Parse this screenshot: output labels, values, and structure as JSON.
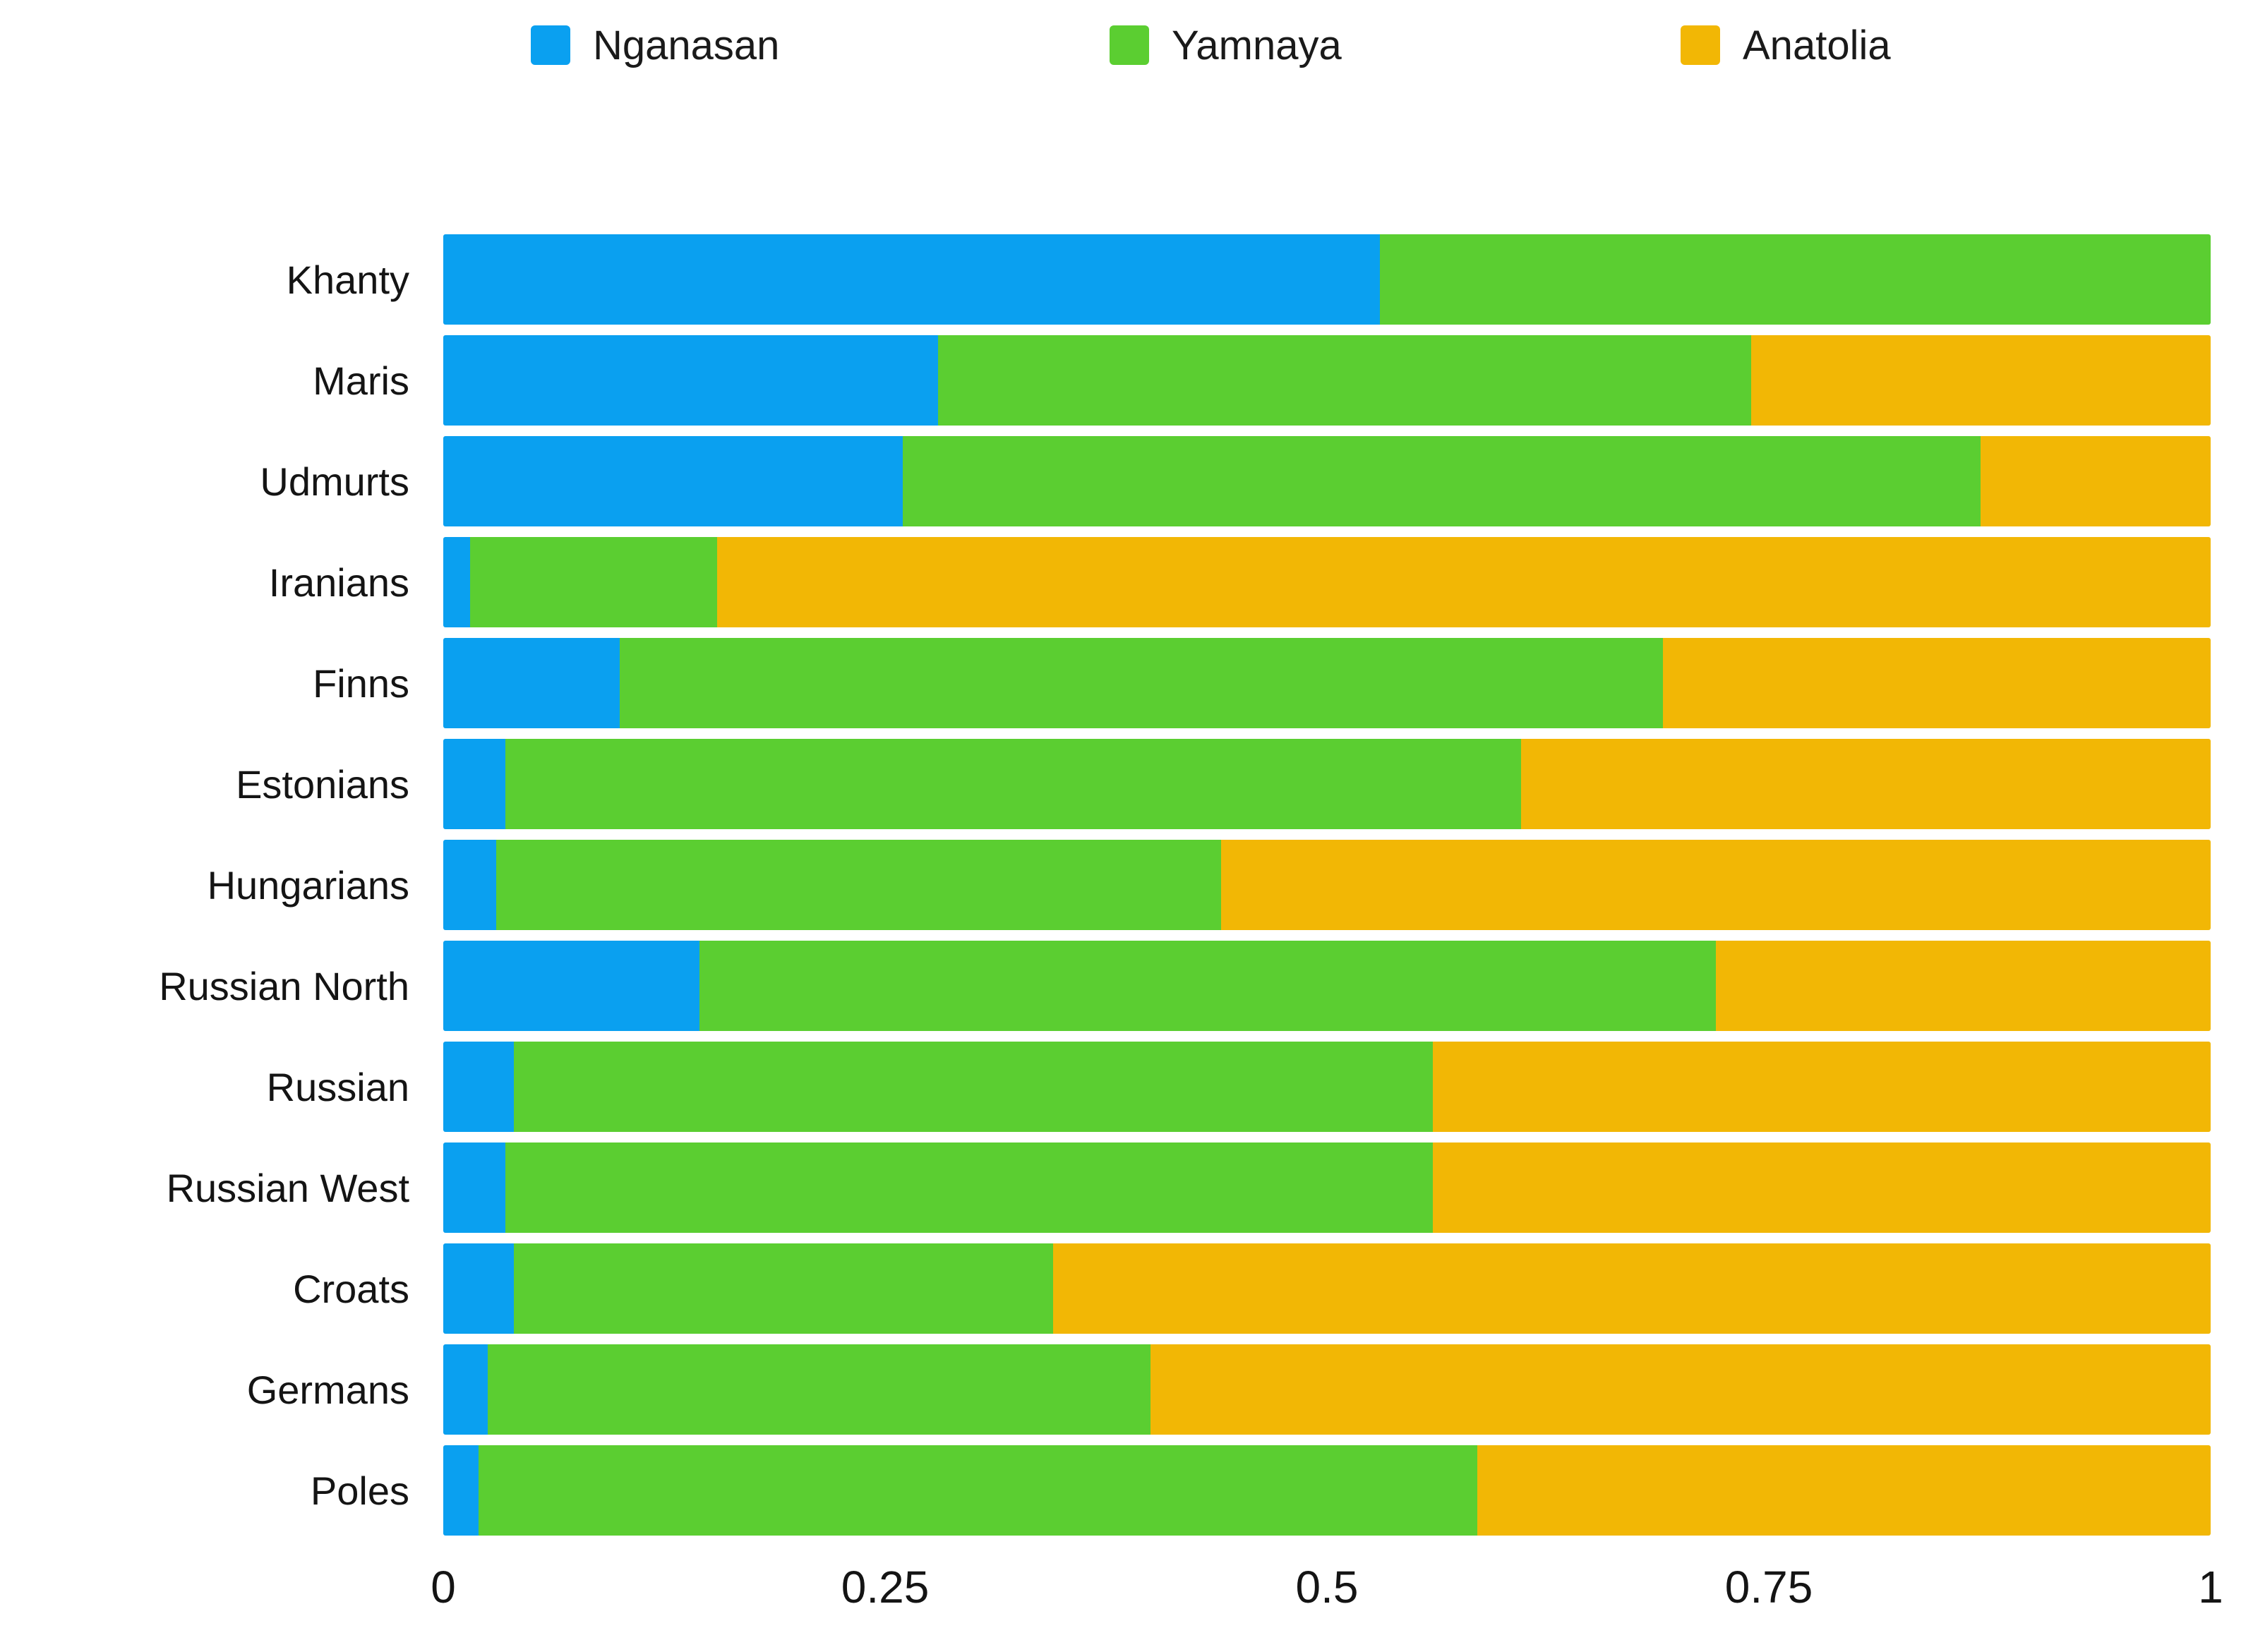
{
  "legend": {
    "position": "top",
    "items": [
      {
        "label": "Nganasan",
        "color": "#0aa0f0"
      },
      {
        "label": "Yamnaya",
        "color": "#5bce31"
      },
      {
        "label": "Anatolia",
        "color": "#f2b705"
      }
    ]
  },
  "chart_data": {
    "type": "bar",
    "orientation": "horizontal",
    "stacked": true,
    "title": "",
    "xlabel": "",
    "ylabel": "",
    "xlim": [
      0,
      1
    ],
    "grid": false,
    "legend_position": "top",
    "categories": [
      "Khanty",
      "Maris",
      "Udmurts",
      "Iranians",
      "Finns",
      "Estonians",
      "Hungarians",
      "Russian North",
      "Russian",
      "Russian West",
      "Croats",
      "Germans",
      "Poles"
    ],
    "series": [
      {
        "name": "Nganasan",
        "color": "#0aa0f0",
        "values": [
          0.53,
          0.28,
          0.26,
          0.015,
          0.1,
          0.035,
          0.03,
          0.145,
          0.04,
          0.035,
          0.04,
          0.025,
          0.02
        ]
      },
      {
        "name": "Yamnaya",
        "color": "#5bce31",
        "values": [
          0.47,
          0.46,
          0.61,
          0.14,
          0.59,
          0.575,
          0.41,
          0.575,
          0.52,
          0.525,
          0.305,
          0.375,
          0.565
        ]
      },
      {
        "name": "Anatolia",
        "color": "#f2b705",
        "values": [
          0.0,
          0.26,
          0.13,
          0.845,
          0.31,
          0.39,
          0.56,
          0.28,
          0.44,
          0.44,
          0.655,
          0.6,
          0.415
        ]
      }
    ],
    "x_ticks": [
      {
        "value": 0,
        "label": "0"
      },
      {
        "value": 0.25,
        "label": "0.25"
      },
      {
        "value": 0.5,
        "label": "0.5"
      },
      {
        "value": 0.75,
        "label": "0.75"
      },
      {
        "value": 1,
        "label": "1"
      }
    ]
  }
}
